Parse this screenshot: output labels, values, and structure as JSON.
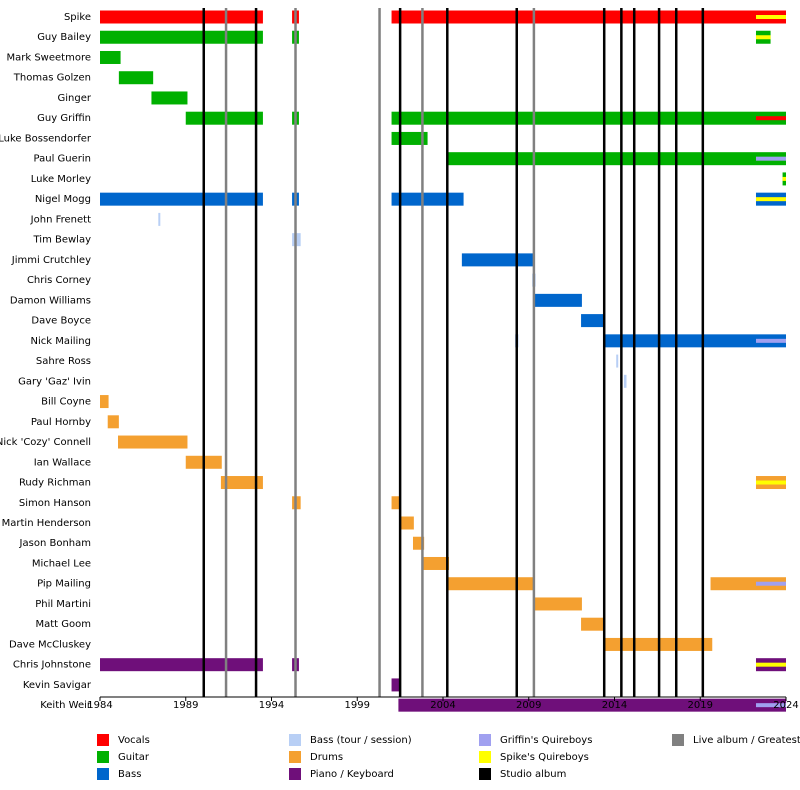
{
  "chart_data": {
    "type": "timeline",
    "xlim": [
      1984,
      2024
    ],
    "xticks": [
      1984,
      1989,
      1994,
      1999,
      2004,
      2009,
      2014,
      2019,
      2024
    ],
    "legend": [
      {
        "label": "Vocals",
        "color": "#ff0000"
      },
      {
        "label": "Guitar",
        "color": "#00b000"
      },
      {
        "label": "Bass",
        "color": "#0066cc"
      },
      {
        "label": "Bass (tour / session)",
        "color": "#b8cff5"
      },
      {
        "label": "Drums",
        "color": "#f4a030"
      },
      {
        "label": "Piano / Keyboard",
        "color": "#6f0f7a"
      },
      {
        "label": "Griffin's Quireboys",
        "color": "#a0a0f0"
      },
      {
        "label": "Spike's Quireboys",
        "color": "#ffff00"
      },
      {
        "label": "Studio album",
        "color": "#000000"
      },
      {
        "label": "Live album / Greatest H",
        "color": "#808080"
      }
    ],
    "studio_albums": [
      1990.05,
      1993.1,
      2001.5,
      2004.25,
      2008.3,
      2013.4,
      2014.4,
      2015.15,
      2016.6,
      2017.6,
      2019.15
    ],
    "live_albums": [
      1991.35,
      1995.4,
      2000.3,
      2002.8,
      2009.3
    ],
    "members": [
      {
        "name": "Spike",
        "bars": [
          {
            "start": 1984,
            "end": 1993.5,
            "role": "Vocals"
          },
          {
            "start": 1995.2,
            "end": 1995.6,
            "role": "Vocals"
          },
          {
            "start": 2001,
            "end": 2024,
            "role": "Vocals"
          },
          {
            "start": 2022.25,
            "end": 2024,
            "role": "Spike's Quireboys",
            "overlay": true
          }
        ]
      },
      {
        "name": "Guy Bailey",
        "bars": [
          {
            "start": 1984,
            "end": 1993.5,
            "role": "Guitar"
          },
          {
            "start": 1995.2,
            "end": 1995.6,
            "role": "Guitar"
          },
          {
            "start": 2022.25,
            "end": 2023.1,
            "role": "Guitar"
          },
          {
            "start": 2022.25,
            "end": 2023.1,
            "role": "Spike's Quireboys",
            "overlay": true
          }
        ]
      },
      {
        "name": "Mark Sweetmore",
        "bars": [
          {
            "start": 1984,
            "end": 1985.2,
            "role": "Guitar"
          }
        ]
      },
      {
        "name": "Thomas Golzen",
        "bars": [
          {
            "start": 1985.1,
            "end": 1987.1,
            "role": "Guitar"
          }
        ]
      },
      {
        "name": "Ginger",
        "bars": [
          {
            "start": 1987,
            "end": 1989.1,
            "role": "Guitar"
          }
        ]
      },
      {
        "name": "Guy Griffin",
        "bars": [
          {
            "start": 1989,
            "end": 1993.5,
            "role": "Guitar"
          },
          {
            "start": 1995.2,
            "end": 1995.6,
            "role": "Guitar"
          },
          {
            "start": 2001,
            "end": 2024,
            "role": "Guitar"
          },
          {
            "start": 2022.25,
            "end": 2024,
            "role": "Vocals",
            "overlay": true
          }
        ]
      },
      {
        "name": "Luke Bossendorfer",
        "bars": [
          {
            "start": 2001,
            "end": 2003.1,
            "role": "Guitar"
          }
        ]
      },
      {
        "name": "Paul Guerin",
        "bars": [
          {
            "start": 2004.2,
            "end": 2024,
            "role": "Guitar"
          },
          {
            "start": 2022.25,
            "end": 2024,
            "role": "Griffin's Quireboys",
            "overlay": true
          }
        ]
      },
      {
        "name": "Luke Morley",
        "bars": [
          {
            "start": 2023.8,
            "end": 2024,
            "role": "Guitar"
          },
          {
            "start": 2023.8,
            "end": 2024,
            "role": "Spike's Quireboys",
            "overlay": true
          }
        ]
      },
      {
        "name": "Nigel Mogg",
        "bars": [
          {
            "start": 1984,
            "end": 1993.5,
            "role": "Bass"
          },
          {
            "start": 1995.2,
            "end": 1995.6,
            "role": "Bass"
          },
          {
            "start": 2001,
            "end": 2005.2,
            "role": "Bass"
          },
          {
            "start": 2022.25,
            "end": 2024,
            "role": "Bass"
          },
          {
            "start": 2022.25,
            "end": 2024,
            "role": "Spike's Quireboys",
            "overlay": true
          }
        ]
      },
      {
        "name": "John Frenett",
        "bars": [
          {
            "start": 1987.4,
            "end": 1987.5,
            "role": "Bass (tour / session)"
          }
        ]
      },
      {
        "name": "Tim Bewlay",
        "bars": [
          {
            "start": 1995.2,
            "end": 1995.7,
            "role": "Bass (tour / session)"
          }
        ]
      },
      {
        "name": "Jimmi Crutchley",
        "bars": [
          {
            "start": 2005.1,
            "end": 2009.25,
            "role": "Bass"
          }
        ]
      },
      {
        "name": "Chris Corney",
        "bars": [
          {
            "start": 2009.2,
            "end": 2009.4,
            "role": "Bass (tour / session)"
          }
        ]
      },
      {
        "name": "Damon Williams",
        "bars": [
          {
            "start": 2009.25,
            "end": 2012.1,
            "role": "Bass"
          }
        ]
      },
      {
        "name": "Dave Boyce",
        "bars": [
          {
            "start": 2012.05,
            "end": 2013.4,
            "role": "Bass"
          }
        ]
      },
      {
        "name": "Nick Mailing",
        "bars": [
          {
            "start": 2008.2,
            "end": 2008.4,
            "role": "Bass (tour / session)"
          },
          {
            "start": 2013.4,
            "end": 2024,
            "role": "Bass"
          },
          {
            "start": 2022.25,
            "end": 2024,
            "role": "Griffin's Quireboys",
            "overlay": true
          }
        ]
      },
      {
        "name": "Sahre Ross",
        "bars": [
          {
            "start": 2014.1,
            "end": 2014.2,
            "role": "Bass (tour / session)"
          }
        ]
      },
      {
        "name": "Gary 'Gaz' Ivin",
        "bars": [
          {
            "start": 2014.55,
            "end": 2014.7,
            "role": "Bass (tour / session)"
          }
        ]
      },
      {
        "name": "Bill Coyne",
        "bars": [
          {
            "start": 1984,
            "end": 1984.5,
            "role": "Drums"
          }
        ]
      },
      {
        "name": "Paul Hornby",
        "bars": [
          {
            "start": 1984.45,
            "end": 1985.1,
            "role": "Drums"
          }
        ]
      },
      {
        "name": "Nick 'Cozy' Connell",
        "bars": [
          {
            "start": 1985.05,
            "end": 1989.1,
            "role": "Drums"
          }
        ]
      },
      {
        "name": "Ian Wallace",
        "bars": [
          {
            "start": 1989,
            "end": 1991.1,
            "role": "Drums"
          }
        ]
      },
      {
        "name": "Rudy Richman",
        "bars": [
          {
            "start": 1991.05,
            "end": 1993.5,
            "role": "Drums"
          },
          {
            "start": 2022.25,
            "end": 2024,
            "role": "Drums"
          },
          {
            "start": 2022.25,
            "end": 2024,
            "role": "Spike's Quireboys",
            "overlay": true
          }
        ]
      },
      {
        "name": "Simon Hanson",
        "bars": [
          {
            "start": 1995.2,
            "end": 1995.7,
            "role": "Drums"
          },
          {
            "start": 2001,
            "end": 2001.55,
            "role": "Drums"
          }
        ]
      },
      {
        "name": "Martin Henderson",
        "bars": [
          {
            "start": 2001.5,
            "end": 2002.3,
            "role": "Drums"
          }
        ]
      },
      {
        "name": "Jason Bonham",
        "bars": [
          {
            "start": 2002.25,
            "end": 2002.9,
            "role": "Drums"
          }
        ]
      },
      {
        "name": "Michael Lee",
        "bars": [
          {
            "start": 2002.85,
            "end": 2004.35,
            "role": "Drums"
          }
        ]
      },
      {
        "name": "Pip Mailing",
        "bars": [
          {
            "start": 2004.3,
            "end": 2009.35,
            "role": "Drums"
          },
          {
            "start": 2019.6,
            "end": 2024,
            "role": "Drums"
          },
          {
            "start": 2022.25,
            "end": 2024,
            "role": "Griffin's Quireboys",
            "overlay": true
          }
        ]
      },
      {
        "name": "Phil Martini",
        "bars": [
          {
            "start": 2009.3,
            "end": 2012.1,
            "role": "Drums"
          }
        ]
      },
      {
        "name": "Matt Goom",
        "bars": [
          {
            "start": 2012.05,
            "end": 2013.4,
            "role": "Drums"
          }
        ]
      },
      {
        "name": "Dave McCluskey",
        "bars": [
          {
            "start": 2013.35,
            "end": 2019.7,
            "role": "Drums"
          }
        ]
      },
      {
        "name": "Chris Johnstone",
        "bars": [
          {
            "start": 1984,
            "end": 1993.5,
            "role": "Piano / Keyboard"
          },
          {
            "start": 1995.2,
            "end": 1995.6,
            "role": "Piano / Keyboard"
          },
          {
            "start": 2022.25,
            "end": 2024,
            "role": "Piano / Keyboard"
          },
          {
            "start": 2022.25,
            "end": 2024,
            "role": "Spike's Quireboys",
            "overlay": true
          }
        ]
      },
      {
        "name": "Kevin Savigar",
        "bars": [
          {
            "start": 2001,
            "end": 2001.45,
            "role": "Piano / Keyboard"
          }
        ]
      },
      {
        "name": "Keith Weir",
        "bars": [
          {
            "start": 2001.4,
            "end": 2024,
            "role": "Piano / Keyboard"
          },
          {
            "start": 2022.25,
            "end": 2024,
            "role": "Griffin's Quireboys",
            "overlay": true
          }
        ]
      }
    ]
  }
}
